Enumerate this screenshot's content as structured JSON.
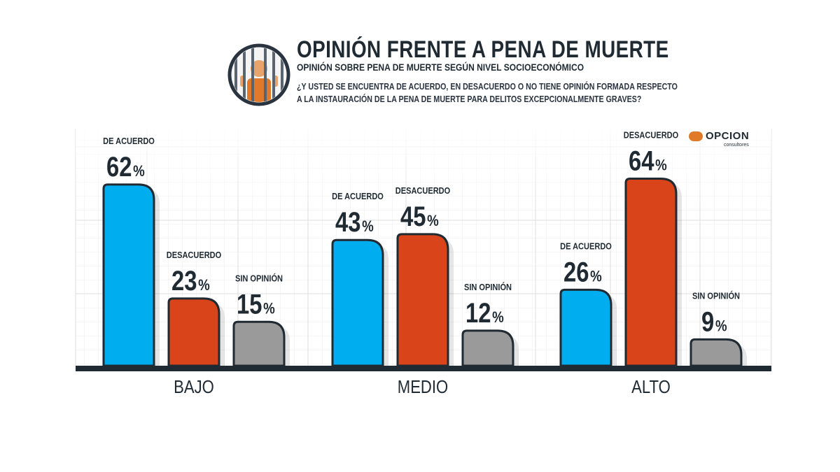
{
  "header": {
    "title": "OPINIÓN FRENTE A PENA DE MUERTE",
    "subtitle": "OPINIÓN SOBRE PENA DE MUERTE SEGÚN NIVEL SOCIOECONÓMICO",
    "question_line1": "¿Y USTED SE ENCUENTRA DE ACUERDO, EN DESACUERDO O NO TIENE OPINIÓN FORMADA RESPECTO",
    "question_line2": "A LA INSTAURACIÓN DE LA PENA DE MUERTE PARA DELITOS EXCEPCIONALMENTE GRAVES?",
    "icon": "prisoner-behind-bars-icon"
  },
  "brand": {
    "name": "OPCION",
    "sub": "consultores"
  },
  "colors": {
    "de_acuerdo": "#00adee",
    "desacuerdo": "#d9441a",
    "sin_opinion": "#9a9a9a",
    "outline": "#1f2a33",
    "baseline": "#1f2a33"
  },
  "chart_data": {
    "type": "bar",
    "categories": [
      "BAJO",
      "MEDIO",
      "ALTO"
    ],
    "series": [
      {
        "name": "DE ACUERDO",
        "values": [
          62,
          43,
          26
        ]
      },
      {
        "name": "DESACUERDO",
        "values": [
          23,
          45,
          64
        ]
      },
      {
        "name": "SIN OPINIÓN",
        "values": [
          15,
          12,
          9
        ]
      }
    ],
    "unit": "%",
    "ylim": [
      0,
      80
    ],
    "grid": true
  }
}
